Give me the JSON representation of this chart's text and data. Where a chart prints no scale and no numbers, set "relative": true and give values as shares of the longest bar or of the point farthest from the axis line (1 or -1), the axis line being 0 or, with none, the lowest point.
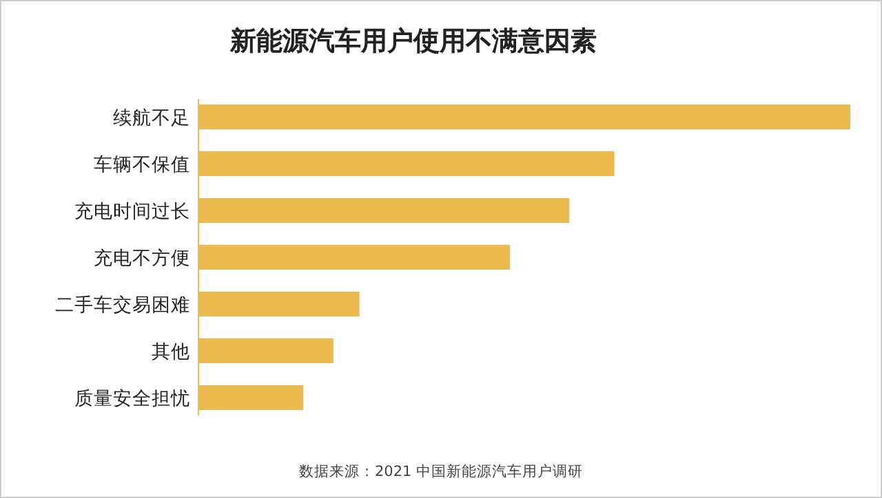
{
  "chart_data": {
    "type": "bar",
    "orientation": "horizontal",
    "relative": true,
    "title": "新能源汽车用户使用不满意因素",
    "categories": [
      "续航不足",
      "车辆不保值",
      "充电时间过长",
      "充电不方便",
      "二手车交易困难",
      "其他",
      "质量安全担忧"
    ],
    "values": [
      1,
      0.638,
      0.569,
      0.478,
      0.247,
      0.207,
      0.161
    ],
    "color": "#ecb94f",
    "annotations": [
      "数据来源：2021 中国新能源汽车用户调研"
    ]
  }
}
